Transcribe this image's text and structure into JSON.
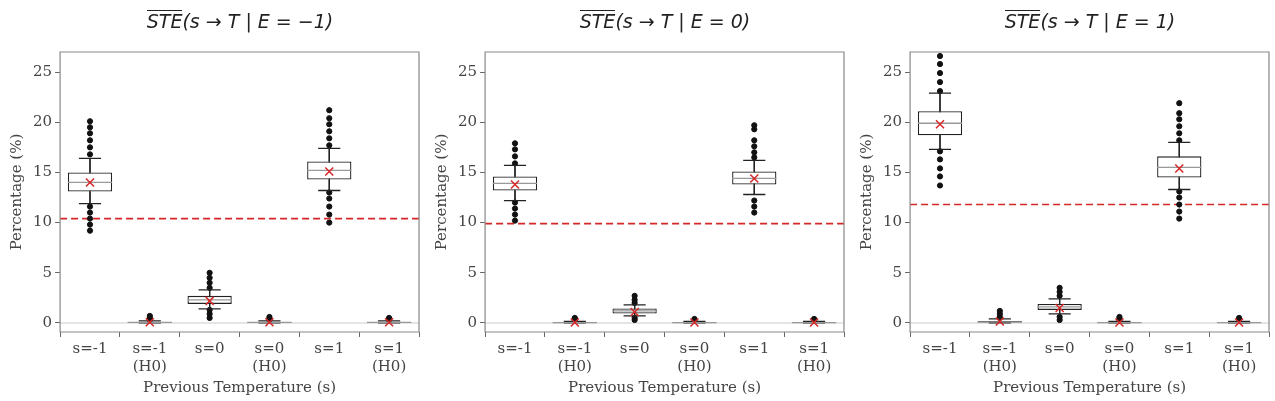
{
  "chart_data": [
    {
      "type": "box",
      "title": "STE(s → T | E = −1)",
      "xlabel": "Previous Temperature (s)",
      "ylabel": "Percentage (%)",
      "categories": [
        "s=-1",
        "s=-1\n(H0)",
        "s=0",
        "s=0\n(H0)",
        "s=1",
        "s=1\n(H0)"
      ],
      "boxes": [
        {
          "low": 11.9,
          "q1": 13.1,
          "median": 14.0,
          "q3": 15.0,
          "high": 16.4,
          "mean": 14.0,
          "outliers": [
            9.2,
            9.8,
            10.4,
            11.0,
            11.6,
            16.8,
            17.5,
            18.2,
            18.9,
            19.5,
            20.1
          ]
        },
        {
          "low": 0,
          "q1": 0.02,
          "median": 0.05,
          "q3": 0.1,
          "high": 0.2,
          "mean": 0.07,
          "outliers": [
            0.3,
            0.5,
            0.7
          ]
        },
        {
          "low": 1.4,
          "q1": 1.9,
          "median": 2.3,
          "q3": 2.7,
          "high": 3.3,
          "mean": 2.2,
          "outliers": [
            0.5,
            0.9,
            1.3,
            3.5,
            4.0,
            4.5,
            5.0
          ]
        },
        {
          "low": 0,
          "q1": 0.02,
          "median": 0.05,
          "q3": 0.1,
          "high": 0.2,
          "mean": 0.07,
          "outliers": [
            0.3,
            0.45,
            0.6
          ]
        },
        {
          "low": 13.2,
          "q1": 14.3,
          "median": 15.2,
          "q3": 16.1,
          "high": 17.4,
          "mean": 15.1,
          "outliers": [
            10.0,
            10.8,
            11.6,
            12.4,
            13.0,
            17.7,
            18.4,
            19.1,
            19.8,
            20.4,
            21.2
          ]
        },
        {
          "low": 0,
          "q1": 0.02,
          "median": 0.05,
          "q3": 0.1,
          "high": 0.2,
          "mean": 0.07,
          "outliers": [
            0.3,
            0.4,
            0.5
          ]
        }
      ],
      "ylim": [
        -0.9,
        27
      ],
      "yticks": [
        0,
        5,
        10,
        15,
        20,
        25
      ],
      "ref_lines": [
        {
          "axis": "y",
          "value": 10.4,
          "color": "#d62728",
          "line_style": "dashed"
        },
        {
          "axis": "y",
          "value": 0,
          "color": "#dddddd",
          "line_style": "solid"
        }
      ]
    },
    {
      "type": "box",
      "title": "STE(s → T | E = 0)",
      "xlabel": "Previous Temperature (s)",
      "ylabel": "Percentage (%)",
      "categories": [
        "s=-1",
        "s=-1\n(H0)",
        "s=0",
        "s=0\n(H0)",
        "s=1",
        "s=1\n(H0)"
      ],
      "boxes": [
        {
          "low": 12.2,
          "q1": 13.2,
          "median": 13.9,
          "q3": 14.6,
          "high": 15.7,
          "mean": 13.8,
          "outliers": [
            10.2,
            10.8,
            11.4,
            12.0,
            15.9,
            16.6,
            17.3,
            17.9
          ]
        },
        {
          "low": 0,
          "q1": 0.02,
          "median": 0.04,
          "q3": 0.08,
          "high": 0.15,
          "mean": 0.05,
          "outliers": [
            0.25,
            0.4,
            0.5
          ]
        },
        {
          "low": 0.7,
          "q1": 0.95,
          "median": 1.2,
          "q3": 1.45,
          "high": 1.8,
          "mean": 1.1,
          "outliers": [
            0.3,
            0.5,
            2.0,
            2.3,
            2.7
          ]
        },
        {
          "low": 0,
          "q1": 0.02,
          "median": 0.04,
          "q3": 0.08,
          "high": 0.15,
          "mean": 0.05,
          "outliers": [
            0.25,
            0.4
          ]
        },
        {
          "low": 12.8,
          "q1": 13.8,
          "median": 14.4,
          "q3": 15.1,
          "high": 16.2,
          "mean": 14.4,
          "outliers": [
            11.0,
            11.6,
            12.2,
            16.5,
            17.0,
            17.6,
            18.2,
            19.3,
            19.7
          ]
        },
        {
          "low": 0,
          "q1": 0.02,
          "median": 0.04,
          "q3": 0.08,
          "high": 0.15,
          "mean": 0.05,
          "outliers": [
            0.25,
            0.4
          ]
        }
      ],
      "ylim": [
        -0.9,
        27
      ],
      "yticks": [
        0,
        5,
        10,
        15,
        20,
        25
      ],
      "ref_lines": [
        {
          "axis": "y",
          "value": 9.9,
          "color": "#d62728",
          "line_style": "dashed"
        },
        {
          "axis": "y",
          "value": 0,
          "color": "#dddddd",
          "line_style": "solid"
        }
      ]
    },
    {
      "type": "box",
      "title": "STE(s → T | E = 1)",
      "xlabel": "Previous Temperature (s)",
      "ylabel": "Percentage (%)",
      "categories": [
        "s=-1",
        "s=-1\n(H0)",
        "s=0",
        "s=0\n(H0)",
        "s=1",
        "s=1\n(H0)"
      ],
      "boxes": [
        {
          "low": 17.3,
          "q1": 18.7,
          "median": 19.9,
          "q3": 21.1,
          "high": 22.9,
          "mean": 19.8,
          "outliers": [
            13.7,
            14.6,
            15.4,
            16.3,
            17.1,
            23.1,
            24.0,
            24.9,
            25.8,
            26.6
          ]
        },
        {
          "low": 0,
          "q1": 0.05,
          "median": 0.1,
          "q3": 0.2,
          "high": 0.4,
          "mean": 0.15,
          "outliers": [
            0.6,
            0.9,
            1.2
          ]
        },
        {
          "low": 0.9,
          "q1": 1.3,
          "median": 1.6,
          "q3": 1.9,
          "high": 2.4,
          "mean": 1.5,
          "outliers": [
            0.3,
            0.6,
            2.7,
            3.1,
            3.5
          ]
        },
        {
          "low": 0,
          "q1": 0.02,
          "median": 0.04,
          "q3": 0.08,
          "high": 0.15,
          "mean": 0.05,
          "outliers": [
            0.3,
            0.45,
            0.6
          ]
        },
        {
          "low": 13.3,
          "q1": 14.5,
          "median": 15.5,
          "q3": 16.6,
          "high": 18.0,
          "mean": 15.4,
          "outliers": [
            10.4,
            11.1,
            11.8,
            12.5,
            13.1,
            18.2,
            18.9,
            19.6,
            20.3,
            20.9,
            21.9
          ]
        },
        {
          "low": 0,
          "q1": 0.02,
          "median": 0.04,
          "q3": 0.08,
          "high": 0.15,
          "mean": 0.05,
          "outliers": [
            0.3,
            0.5
          ]
        }
      ],
      "ylim": [
        -0.9,
        27
      ],
      "yticks": [
        0,
        5,
        10,
        15,
        20,
        25
      ],
      "ref_lines": [
        {
          "axis": "y",
          "value": 11.8,
          "color": "#d62728",
          "line_style": "dashed"
        },
        {
          "axis": "y",
          "value": 0,
          "color": "#dddddd",
          "line_style": "solid"
        }
      ]
    }
  ]
}
